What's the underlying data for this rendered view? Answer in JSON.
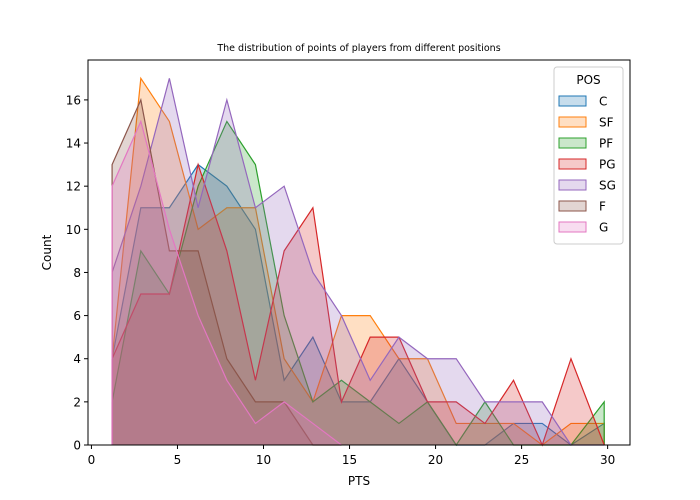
{
  "chart_data": {
    "type": "area",
    "title": "The distribution of points of players from different positions",
    "xlabel": "PTS",
    "ylabel": "Count",
    "xlim": [
      -0.2,
      31.3
    ],
    "ylim": [
      0,
      17.85
    ],
    "xticks": [
      0,
      5,
      10,
      15,
      20,
      25,
      30
    ],
    "yticks": [
      0,
      2,
      4,
      6,
      8,
      10,
      12,
      14,
      16
    ],
    "grid": false,
    "legend_title": "POS",
    "legend_position": "top-right",
    "x": [
      1.2,
      2.87,
      4.53,
      6.2,
      7.87,
      9.53,
      11.2,
      12.87,
      14.53,
      16.2,
      17.87,
      19.53,
      21.2,
      22.87,
      24.53,
      26.2,
      27.87,
      29.8
    ],
    "series": [
      {
        "name": "C",
        "color": "#1f77b4",
        "values": [
          4,
          11,
          11,
          13,
          12,
          10,
          3,
          5,
          2,
          2,
          4,
          2,
          0,
          0,
          1,
          1,
          0,
          1
        ]
      },
      {
        "name": "SF",
        "color": "#ff7f0e",
        "values": [
          4,
          17,
          15,
          10,
          11,
          11,
          4,
          2,
          6,
          6,
          4,
          4,
          1,
          1,
          1,
          0,
          1,
          1
        ]
      },
      {
        "name": "PF",
        "color": "#2ca02c",
        "values": [
          2,
          9,
          7,
          12,
          15,
          13,
          6,
          2,
          3,
          2,
          1,
          2,
          0,
          2,
          0,
          0,
          0,
          2
        ]
      },
      {
        "name": "PG",
        "color": "#d62728",
        "values": [
          4,
          7,
          7,
          13,
          9,
          3,
          9,
          11,
          2,
          5,
          5,
          2,
          2,
          1,
          3,
          0,
          4,
          0
        ]
      },
      {
        "name": "SG",
        "color": "#9467bd",
        "values": [
          8,
          12,
          17,
          11,
          16,
          11,
          12,
          8,
          6,
          3,
          5,
          4,
          4,
          2,
          2,
          2,
          0,
          0
        ]
      },
      {
        "name": "F",
        "color": "#8c564b",
        "values": [
          13,
          16,
          9,
          9,
          4,
          2,
          2,
          0,
          0,
          null,
          null,
          null,
          null,
          null,
          null,
          null,
          null,
          null
        ]
      },
      {
        "name": "G",
        "color": "#e377c2",
        "values": [
          12,
          15,
          10,
          6,
          3,
          1,
          2,
          1,
          0,
          null,
          null,
          null,
          null,
          null,
          null,
          null,
          null,
          null
        ]
      }
    ]
  }
}
